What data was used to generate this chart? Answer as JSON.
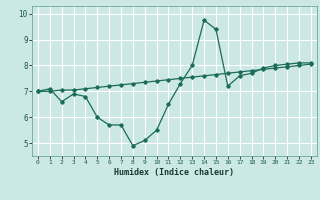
{
  "xlabel": "Humidex (Indice chaleur)",
  "background_color": "#cce8e4",
  "grid_color": "#aad4ce",
  "line_color": "#1a6b5a",
  "xlim": [
    -0.5,
    23.5
  ],
  "ylim": [
    4.5,
    10.3
  ],
  "xticks": [
    0,
    1,
    2,
    3,
    4,
    5,
    6,
    7,
    8,
    9,
    10,
    11,
    12,
    13,
    14,
    15,
    16,
    17,
    18,
    19,
    20,
    21,
    22,
    23
  ],
  "yticks": [
    5,
    6,
    7,
    8,
    9,
    10
  ],
  "line1_x": [
    0,
    1,
    2,
    3,
    4,
    5,
    6,
    7,
    8,
    9,
    10,
    11,
    12,
    13,
    14,
    15,
    16,
    17,
    18,
    19,
    20,
    21,
    22,
    23
  ],
  "line1_y": [
    7.0,
    7.1,
    6.6,
    6.9,
    6.8,
    6.0,
    5.7,
    5.7,
    4.9,
    5.1,
    5.5,
    6.5,
    7.3,
    8.0,
    9.75,
    9.4,
    7.2,
    7.6,
    7.7,
    7.9,
    8.0,
    8.05,
    8.1,
    8.1
  ],
  "line2_x": [
    0,
    1,
    2,
    3,
    4,
    5,
    6,
    7,
    8,
    9,
    10,
    11,
    12,
    13,
    14,
    15,
    16,
    17,
    18,
    19,
    20,
    21,
    22,
    23
  ],
  "line2_y": [
    7.0,
    7.0,
    7.05,
    7.05,
    7.1,
    7.15,
    7.2,
    7.25,
    7.3,
    7.35,
    7.4,
    7.45,
    7.5,
    7.55,
    7.6,
    7.65,
    7.7,
    7.75,
    7.8,
    7.85,
    7.9,
    7.95,
    8.0,
    8.05
  ]
}
